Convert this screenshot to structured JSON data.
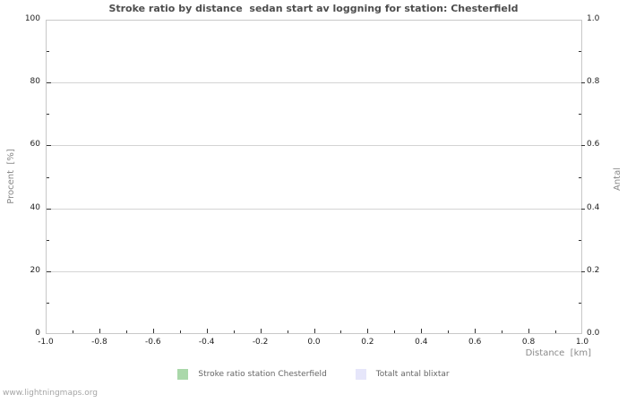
{
  "chart_data": {
    "type": "line",
    "title": "Stroke ratio by distance  sedan start av loggning for station: Chesterfield",
    "xlabel": "Distance  [km]",
    "ylabel_left": "Procent  [%]",
    "ylabel_right": "Antal",
    "xlim": [
      -1.0,
      1.0
    ],
    "ylim_left": [
      0,
      100
    ],
    "ylim_right": [
      0.0,
      1.0
    ],
    "x_ticks": [
      "-1.0",
      "-0.8",
      "-0.6",
      "-0.4",
      "-0.2",
      "0.0",
      "0.2",
      "0.4",
      "0.6",
      "0.8",
      "1.0"
    ],
    "y_ticks_left": [
      "0",
      "20",
      "40",
      "60",
      "80",
      "100"
    ],
    "y_ticks_right": [
      "0.0",
      "0.2",
      "0.4",
      "0.6",
      "0.8",
      "1.0"
    ],
    "grid": true,
    "legend_position": "bottom-center",
    "series": [
      {
        "name": "Stroke ratio station Chesterfield",
        "color": "#aad8aa",
        "x": [],
        "values": []
      },
      {
        "name": "Totalt antal blixtar",
        "color": "#e6e6fa",
        "x": [],
        "values": []
      }
    ]
  },
  "footer": {
    "watermark": "www.lightningmaps.org"
  }
}
